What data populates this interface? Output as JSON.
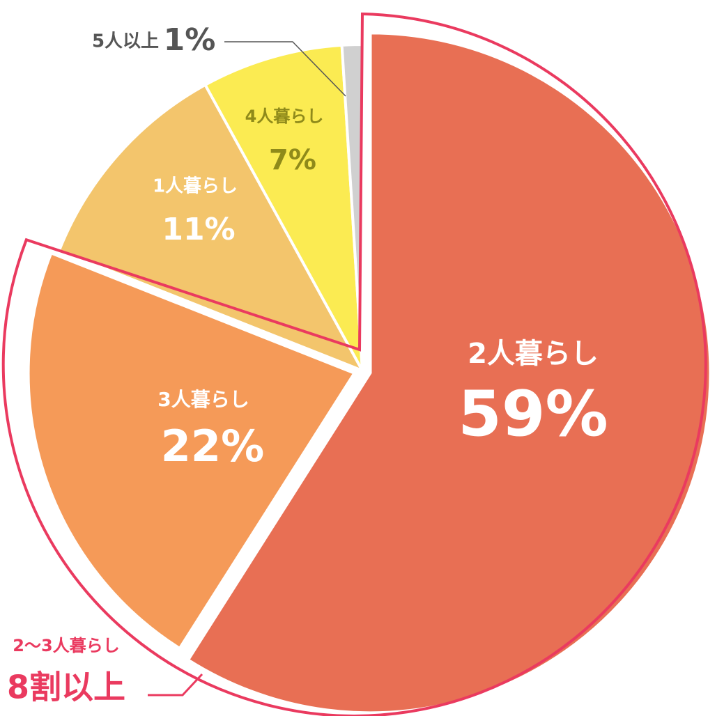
{
  "chart_data": {
    "type": "pie",
    "categories": [
      "2人暮らし",
      "3人暮らし",
      "1人暮らし",
      "4人暮らし",
      "5人以上"
    ],
    "values": [
      59,
      22,
      11,
      7,
      1
    ],
    "value_labels": [
      "59%",
      "22%",
      "11%",
      "7%",
      "1%"
    ],
    "colors": [
      "#e86f54",
      "#f59a58",
      "#f3c56c",
      "#fbeb52",
      "#d0d0d0"
    ],
    "annotation": {
      "subtitle": "2〜3人暮らし",
      "text": "8割以上"
    }
  }
}
